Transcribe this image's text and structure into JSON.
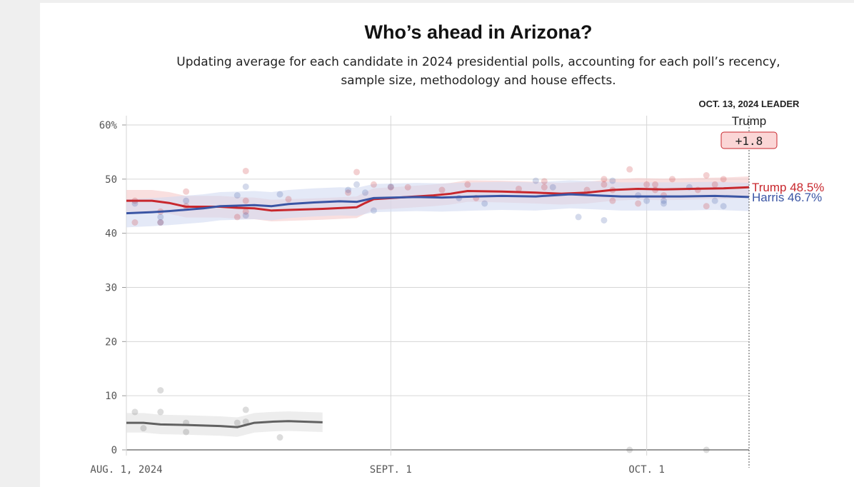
{
  "chart_data": {
    "type": "line",
    "title": "Who’s ahead in Arizona?",
    "subtitle": "Updating average for each candidate in 2024 presidential polls, accounting for each poll’s recency, sample size, methodology and house effects.",
    "x_domain": [
      "2024-08-01",
      "2024-10-13"
    ],
    "ylim": [
      0,
      60
    ],
    "y_ticks": [
      0,
      10,
      20,
      30,
      40,
      50,
      60
    ],
    "y_tick_labels": [
      "0",
      "10",
      "20",
      "30",
      "40",
      "50",
      "60%"
    ],
    "x_ticks": [
      {
        "date": "2024-08-01",
        "label": "AUG. 1, 2024"
      },
      {
        "date": "2024-09-01",
        "label": "SEPT. 1"
      },
      {
        "date": "2024-10-01",
        "label": "OCT. 1"
      }
    ],
    "grid": true,
    "series": [
      {
        "name": "Trump",
        "color": "#c8272d",
        "band_color": "#f5c9c9",
        "label": "Trump 48.5%",
        "line": [
          [
            "2024-08-01",
            46.0
          ],
          [
            "2024-08-04",
            46.0
          ],
          [
            "2024-08-06",
            45.6
          ],
          [
            "2024-08-08",
            44.9
          ],
          [
            "2024-08-12",
            44.9
          ],
          [
            "2024-08-14",
            44.7
          ],
          [
            "2024-08-16",
            44.6
          ],
          [
            "2024-08-18",
            44.2
          ],
          [
            "2024-08-20",
            44.3
          ],
          [
            "2024-08-24",
            44.5
          ],
          [
            "2024-08-28",
            44.8
          ],
          [
            "2024-08-29",
            45.6
          ],
          [
            "2024-08-30",
            46.3
          ],
          [
            "2024-09-03",
            46.7
          ],
          [
            "2024-09-06",
            47.0
          ],
          [
            "2024-09-08",
            47.3
          ],
          [
            "2024-09-10",
            47.8
          ],
          [
            "2024-09-14",
            47.7
          ],
          [
            "2024-09-18",
            47.5
          ],
          [
            "2024-09-21",
            47.3
          ],
          [
            "2024-09-24",
            47.5
          ],
          [
            "2024-09-27",
            48.0
          ],
          [
            "2024-09-30",
            48.2
          ],
          [
            "2024-10-03",
            48.1
          ],
          [
            "2024-10-06",
            48.2
          ],
          [
            "2024-10-10",
            48.3
          ],
          [
            "2024-10-13",
            48.5
          ]
        ],
        "band_halfwidth": 2.0,
        "polls": [
          [
            "2024-08-02",
            46
          ],
          [
            "2024-08-02",
            42
          ],
          [
            "2024-08-05",
            44
          ],
          [
            "2024-08-05",
            42
          ],
          [
            "2024-08-08",
            47.7
          ],
          [
            "2024-08-08",
            45
          ],
          [
            "2024-08-14",
            43
          ],
          [
            "2024-08-15",
            44
          ],
          [
            "2024-08-15",
            51.5
          ],
          [
            "2024-08-15",
            46
          ],
          [
            "2024-08-20",
            46.3
          ],
          [
            "2024-08-27",
            47.5
          ],
          [
            "2024-08-28",
            51.3
          ],
          [
            "2024-08-30",
            49
          ],
          [
            "2024-09-01",
            48.5
          ],
          [
            "2024-09-03",
            48.5
          ],
          [
            "2024-09-07",
            48
          ],
          [
            "2024-09-10",
            49
          ],
          [
            "2024-09-11",
            46.5
          ],
          [
            "2024-09-16",
            48.2
          ],
          [
            "2024-09-19",
            49.6
          ],
          [
            "2024-09-19",
            48.5
          ],
          [
            "2024-09-24",
            48
          ],
          [
            "2024-09-26",
            50
          ],
          [
            "2024-09-26",
            49
          ],
          [
            "2024-09-27",
            48
          ],
          [
            "2024-09-27",
            46
          ],
          [
            "2024-09-29",
            51.8
          ],
          [
            "2024-09-30",
            45.5
          ],
          [
            "2024-10-01",
            49
          ],
          [
            "2024-10-02",
            49
          ],
          [
            "2024-10-02",
            48
          ],
          [
            "2024-10-03",
            47
          ],
          [
            "2024-10-04",
            50
          ],
          [
            "2024-10-07",
            48
          ],
          [
            "2024-10-08",
            50.7
          ],
          [
            "2024-10-08",
            45
          ],
          [
            "2024-10-09",
            49
          ],
          [
            "2024-10-10",
            50
          ]
        ]
      },
      {
        "name": "Harris",
        "color": "#3a55a4",
        "band_color": "#d2daf1",
        "label": "Harris 46.7%",
        "line": [
          [
            "2024-08-01",
            43.7
          ],
          [
            "2024-08-04",
            43.9
          ],
          [
            "2024-08-06",
            44.1
          ],
          [
            "2024-08-10",
            44.6
          ],
          [
            "2024-08-12",
            45.0
          ],
          [
            "2024-08-14",
            45.1
          ],
          [
            "2024-08-16",
            45.2
          ],
          [
            "2024-08-18",
            45.0
          ],
          [
            "2024-08-20",
            45.4
          ],
          [
            "2024-08-23",
            45.7
          ],
          [
            "2024-08-26",
            45.9
          ],
          [
            "2024-08-28",
            45.8
          ],
          [
            "2024-08-30",
            46.5
          ],
          [
            "2024-09-04",
            46.7
          ],
          [
            "2024-09-07",
            46.6
          ],
          [
            "2024-09-11",
            46.8
          ],
          [
            "2024-09-14",
            46.9
          ],
          [
            "2024-09-18",
            46.8
          ],
          [
            "2024-09-22",
            47.2
          ],
          [
            "2024-09-25",
            47.0
          ],
          [
            "2024-09-28",
            46.8
          ],
          [
            "2024-10-01",
            46.8
          ],
          [
            "2024-10-05",
            46.8
          ],
          [
            "2024-10-09",
            46.9
          ],
          [
            "2024-10-13",
            46.7
          ]
        ],
        "band_halfwidth": 2.6,
        "polls": [
          [
            "2024-08-02",
            45.5
          ],
          [
            "2024-08-05",
            43
          ],
          [
            "2024-08-05",
            42
          ],
          [
            "2024-08-08",
            46
          ],
          [
            "2024-08-14",
            47
          ],
          [
            "2024-08-15",
            48.6
          ],
          [
            "2024-08-15",
            43.3
          ],
          [
            "2024-08-19",
            47.2
          ],
          [
            "2024-08-27",
            48
          ],
          [
            "2024-08-28",
            49
          ],
          [
            "2024-08-29",
            47.5
          ],
          [
            "2024-08-30",
            44.2
          ],
          [
            "2024-09-01",
            48.6
          ],
          [
            "2024-09-09",
            46.5
          ],
          [
            "2024-09-12",
            45.5
          ],
          [
            "2024-09-18",
            49.7
          ],
          [
            "2024-09-20",
            48.5
          ],
          [
            "2024-09-23",
            43
          ],
          [
            "2024-09-26",
            42.4
          ],
          [
            "2024-09-27",
            49.7
          ],
          [
            "2024-09-30",
            47
          ],
          [
            "2024-10-01",
            46
          ],
          [
            "2024-10-03",
            46
          ],
          [
            "2024-10-03",
            45.5
          ],
          [
            "2024-10-06",
            48.5
          ],
          [
            "2024-10-09",
            46
          ],
          [
            "2024-10-10",
            45
          ]
        ]
      },
      {
        "name": "",
        "color": "#616161",
        "band_color": "#e1e1e1",
        "label": "",
        "line": [
          [
            "2024-08-01",
            5.0
          ],
          [
            "2024-08-03",
            5.0
          ],
          [
            "2024-08-05",
            4.7
          ],
          [
            "2024-08-08",
            4.6
          ],
          [
            "2024-08-10",
            4.5
          ],
          [
            "2024-08-12",
            4.4
          ],
          [
            "2024-08-14",
            4.2
          ],
          [
            "2024-08-15",
            4.6
          ],
          [
            "2024-08-16",
            5.0
          ],
          [
            "2024-08-18",
            5.2
          ],
          [
            "2024-08-20",
            5.3
          ],
          [
            "2024-08-24",
            5.1
          ]
        ],
        "band_halfwidth": 1.8,
        "polls": [
          [
            "2024-08-02",
            7
          ],
          [
            "2024-08-03",
            4
          ],
          [
            "2024-08-05",
            11
          ],
          [
            "2024-08-05",
            7
          ],
          [
            "2024-08-08",
            5
          ],
          [
            "2024-08-08",
            3.3
          ],
          [
            "2024-08-14",
            5
          ],
          [
            "2024-08-15",
            7.4
          ],
          [
            "2024-08-15",
            5.2
          ],
          [
            "2024-08-19",
            2.3
          ],
          [
            "2024-09-29",
            0
          ],
          [
            "2024-10-08",
            0
          ]
        ]
      }
    ],
    "leader": {
      "heading": "OCT. 13, 2024 LEADER",
      "name": "Trump",
      "margin": "+1.8",
      "box_fill": "#fbd6d6",
      "box_stroke": "#c8272d"
    }
  }
}
